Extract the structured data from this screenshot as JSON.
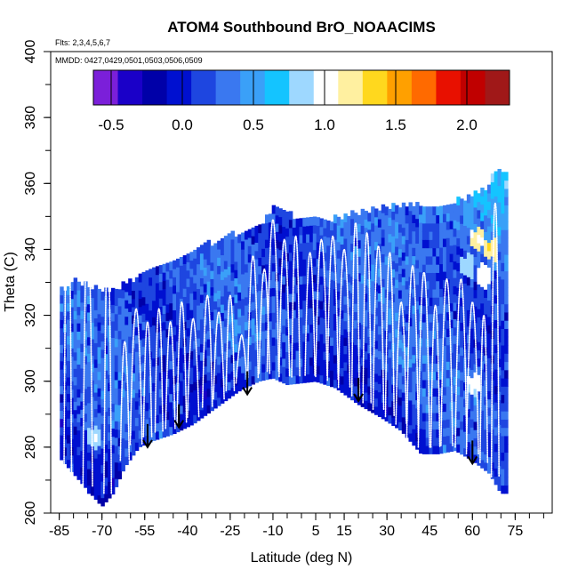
{
  "chart_data": {
    "type": "heatmap",
    "title": "ATOM4 Southbound BrO_NOAACIMS",
    "annotations": {
      "flights": "Flts: 2,3,4,5,6,7",
      "dates": "MMDD: 0427,0429,0501,0503,0506,0509"
    },
    "xlabel": "Latitude (deg N)",
    "ylabel": "Theta (C)",
    "xlim": [
      -88,
      88
    ],
    "ylim": [
      260,
      400
    ],
    "x_ticks": [
      -85,
      -70,
      -55,
      -40,
      -25,
      -10,
      5,
      15,
      30,
      45,
      60,
      75
    ],
    "x_tick_labels": [
      "-85",
      "-70",
      "-55",
      "-40",
      "-25",
      "-10",
      "5",
      "15",
      "30",
      "45",
      "60",
      "75"
    ],
    "y_ticks": [
      260,
      280,
      300,
      320,
      340,
      360,
      380,
      400
    ],
    "y_tick_labels": [
      "260",
      "280",
      "300",
      "320",
      "340",
      "360",
      "380",
      "400"
    ],
    "colorbar": {
      "range": [
        -0.625,
        2.3
      ],
      "ticks": [
        -0.5,
        0.0,
        0.5,
        1.0,
        1.5,
        2.0
      ],
      "tick_labels": [
        "-0.5",
        "0.0",
        "0.5",
        "1.0",
        "1.5",
        "2.0"
      ],
      "colors": [
        "#7b1fd9",
        "#1a00c8",
        "#0000a8",
        "#0010d0",
        "#1e46e0",
        "#3a78f0",
        "#3aa0f8",
        "#14c4ff",
        "#9ed8ff",
        "#ffffff",
        "#fff0a0",
        "#ffd81e",
        "#ffa000",
        "#ff6a00",
        "#e81000",
        "#c00000",
        "#a01818"
      ]
    },
    "upper_boundary": [
      [
        -72,
        327
      ],
      [
        -65,
        327
      ],
      [
        -60,
        329
      ],
      [
        -55,
        331
      ],
      [
        -45,
        335
      ],
      [
        -35,
        340
      ],
      [
        -25,
        343
      ],
      [
        -15,
        346
      ],
      [
        -10,
        351
      ],
      [
        0,
        348
      ],
      [
        10,
        348
      ],
      [
        20,
        350
      ],
      [
        30,
        352
      ],
      [
        40,
        352
      ],
      [
        50,
        353
      ],
      [
        60,
        355
      ],
      [
        65,
        358
      ],
      [
        68,
        362
      ]
    ],
    "lower_boundary": [
      [
        -74,
        266
      ],
      [
        -70,
        262
      ],
      [
        -66,
        266
      ],
      [
        -62,
        274
      ],
      [
        -57,
        280
      ],
      [
        -52,
        282
      ],
      [
        -45,
        284
      ],
      [
        -38,
        287
      ],
      [
        -30,
        292
      ],
      [
        -22,
        297
      ],
      [
        -15,
        300
      ],
      [
        -10,
        301
      ],
      [
        -5,
        299
      ],
      [
        5,
        300
      ],
      [
        12,
        298
      ],
      [
        20,
        293
      ],
      [
        28,
        289
      ],
      [
        35,
        285
      ],
      [
        42,
        278
      ],
      [
        48,
        278
      ],
      [
        54,
        279
      ],
      [
        60,
        276
      ],
      [
        66,
        272
      ],
      [
        70,
        266
      ]
    ],
    "left_edge": [
      [
        -85,
        278
      ],
      [
        -85,
        326
      ],
      [
        -80,
        329
      ],
      [
        -76,
        329
      ],
      [
        -75,
        327
      ]
    ],
    "vertical_profiles": [
      [
        -82,
        360
      ],
      [
        -75,
        345
      ],
      [
        -68,
        338
      ],
      [
        -62,
        312
      ],
      [
        -58,
        322
      ],
      [
        -54,
        318
      ],
      [
        -50,
        322
      ],
      [
        -46,
        318
      ],
      [
        -42,
        324
      ],
      [
        -38,
        319
      ],
      [
        -33,
        326
      ],
      [
        -29,
        321
      ],
      [
        -25,
        326
      ],
      [
        -21,
        314
      ],
      [
        -17,
        338
      ],
      [
        -13,
        334
      ],
      [
        -10,
        349
      ],
      [
        -6,
        343
      ],
      [
        -2,
        344
      ],
      [
        3,
        339
      ],
      [
        7,
        343
      ],
      [
        11,
        344
      ],
      [
        15,
        340
      ],
      [
        19,
        348
      ],
      [
        23,
        345
      ],
      [
        27,
        341
      ],
      [
        31,
        339
      ],
      [
        35,
        324
      ],
      [
        39,
        335
      ],
      [
        43,
        333
      ],
      [
        47,
        323
      ],
      [
        51,
        331
      ],
      [
        56,
        331
      ],
      [
        60,
        324
      ],
      [
        64,
        320
      ],
      [
        68,
        354
      ]
    ],
    "enhanced_cells": [
      [
        -73,
        283,
        1.0
      ],
      [
        60,
        299,
        1.0
      ],
      [
        66,
        340,
        1.3
      ],
      [
        62,
        343,
        1.2
      ],
      [
        64,
        332,
        1.1
      ],
      [
        58,
        335,
        0.9
      ]
    ],
    "arrows": [
      [
        -54,
        280
      ],
      [
        -43,
        286
      ],
      [
        -19,
        296
      ],
      [
        20,
        294
      ],
      [
        60,
        275
      ]
    ]
  }
}
